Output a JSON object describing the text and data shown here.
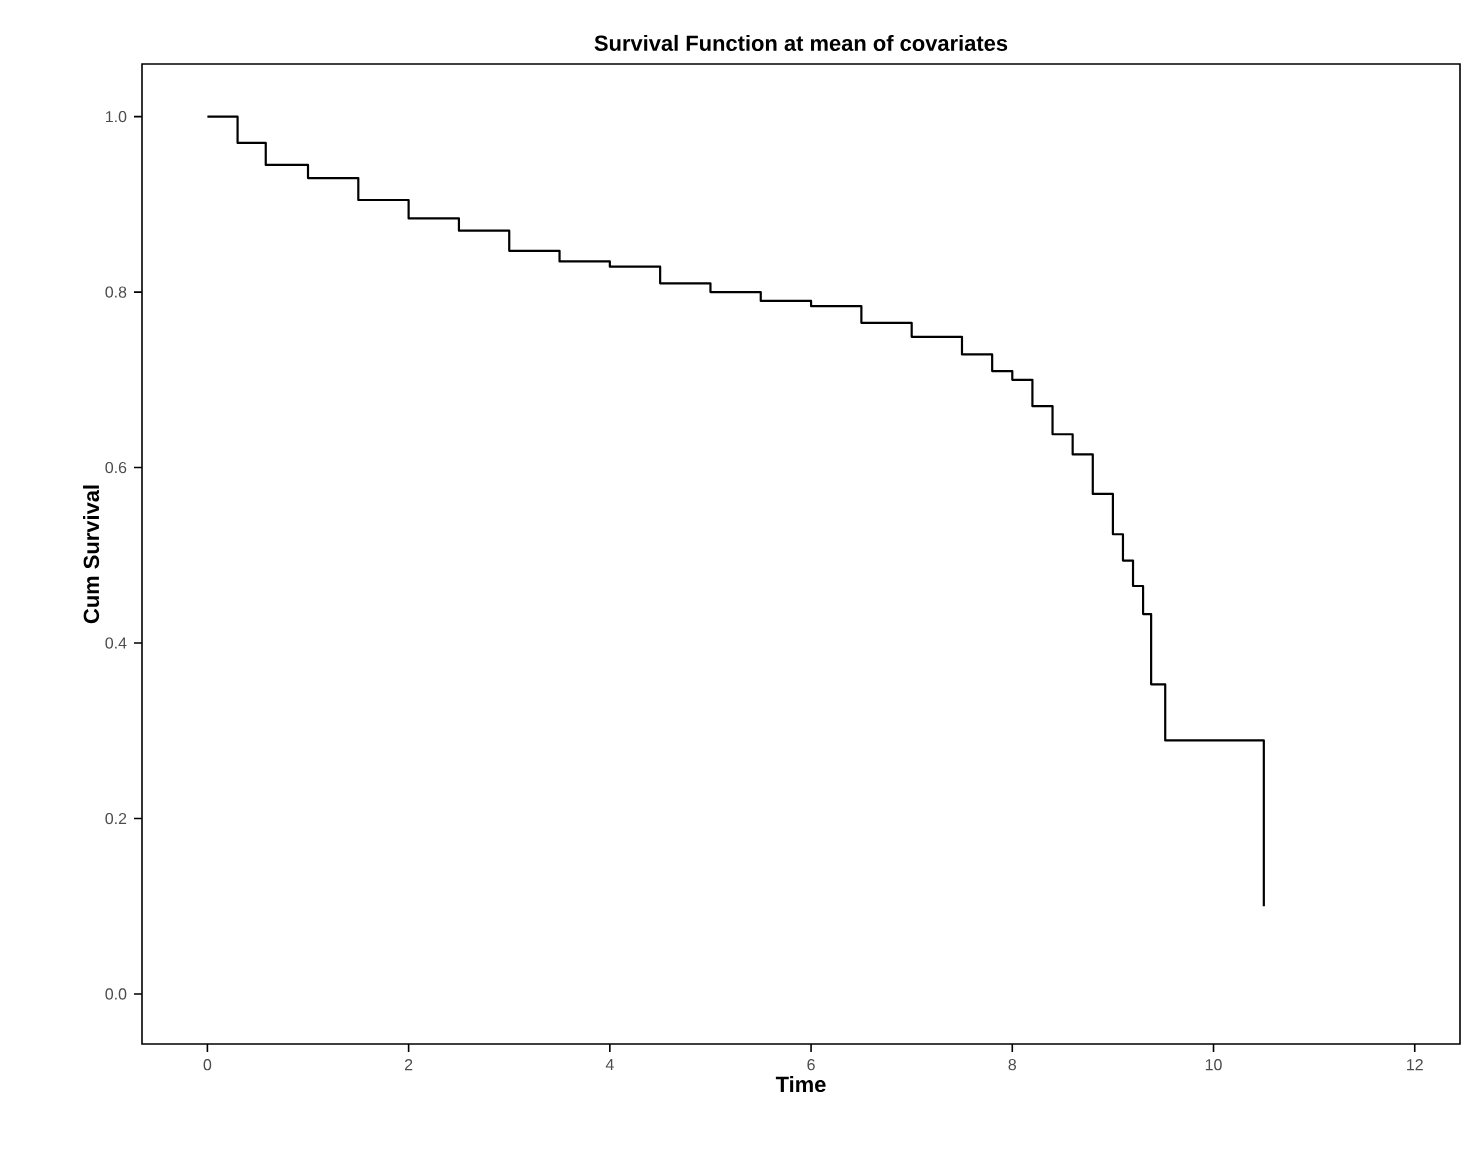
{
  "chart_data": {
    "type": "step",
    "title": "Survival Function at mean of covariates",
    "xlabel": "Time",
    "ylabel": "Cum Survival",
    "x": [
      0,
      0.3,
      0.58,
      1,
      1.5,
      2,
      2.5,
      3,
      3.5,
      4,
      4.5,
      5,
      5.5,
      6,
      6.5,
      7,
      7.5,
      7.8,
      8,
      8.2,
      8.4,
      8.6,
      8.8,
      9.0,
      9.1,
      9.2,
      9.3,
      9.38,
      9.52,
      10.5
    ],
    "values": [
      1.0,
      0.97,
      0.945,
      0.93,
      0.905,
      0.884,
      0.87,
      0.847,
      0.835,
      0.829,
      0.81,
      0.8,
      0.79,
      0.784,
      0.765,
      0.749,
      0.729,
      0.71,
      0.7,
      0.67,
      0.638,
      0.615,
      0.57,
      0.524,
      0.494,
      0.465,
      0.433,
      0.353,
      0.289,
      0.1
    ],
    "color": "#000000",
    "xlim": [
      -0.65,
      12.45
    ],
    "ylim": [
      -0.057,
      1.06
    ],
    "xticks": [
      0,
      2,
      4,
      6,
      8,
      10,
      12
    ],
    "yticks": [
      {
        "value": 0,
        "label": "0.0"
      },
      {
        "value": 0.2,
        "label": "0.2"
      },
      {
        "value": 0.4,
        "label": "0.4"
      },
      {
        "value": 0.6,
        "label": "0.6"
      },
      {
        "value": 0.8,
        "label": "0.8"
      },
      {
        "value": 1,
        "label": "1.0"
      }
    ]
  }
}
